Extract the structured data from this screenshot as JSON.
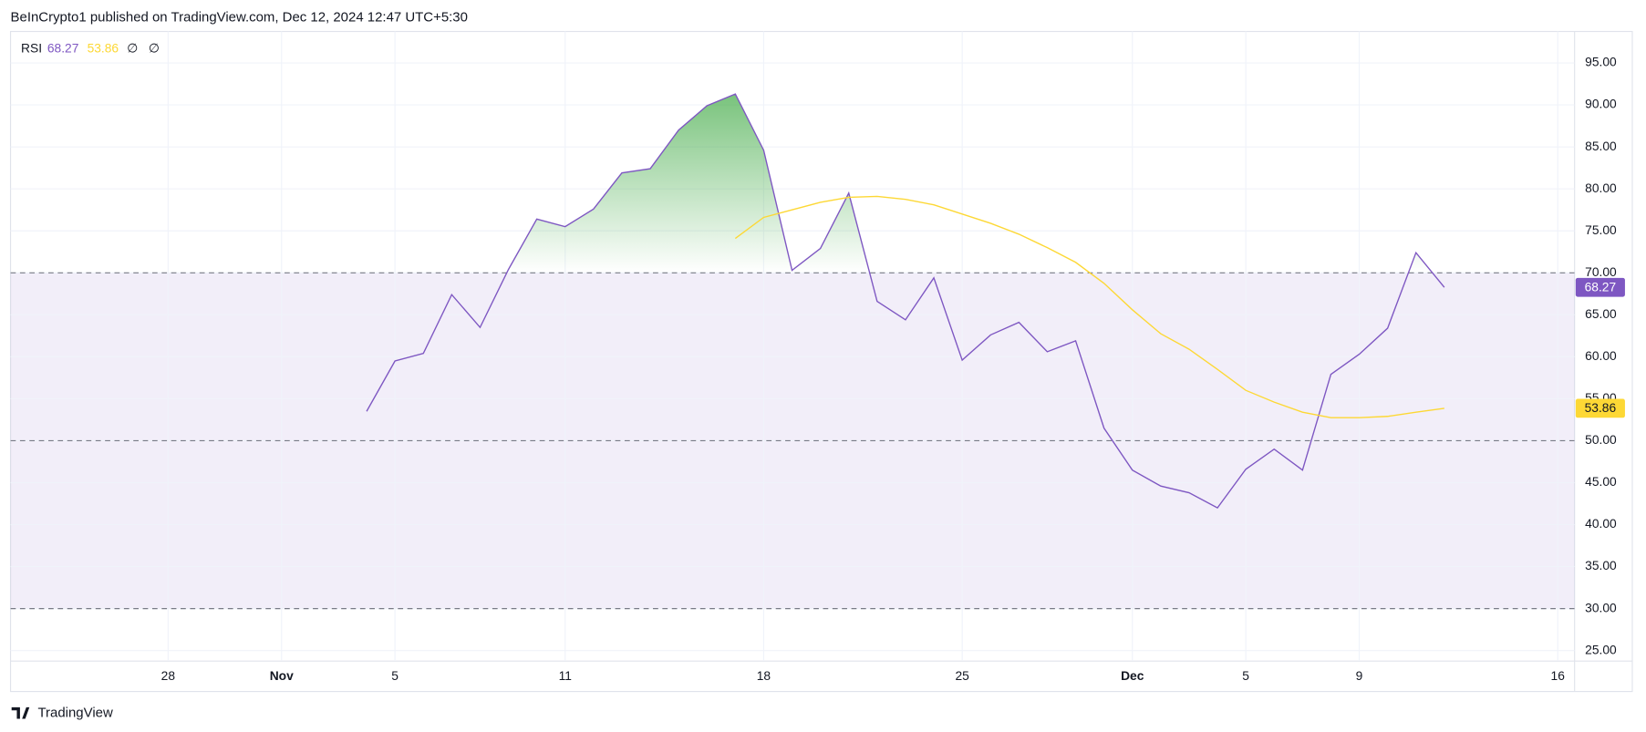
{
  "header": "BeInCrypto1 published on TradingView.com, Dec 12, 2024 12:47 UTC+5:30",
  "footer": "TradingView",
  "chart_data": {
    "type": "line",
    "legend_extra": [
      "∅",
      "∅"
    ],
    "x": [
      "Nov 4",
      "Nov 5",
      "Nov 6",
      "Nov 7",
      "Nov 8",
      "Nov 9",
      "Nov 10",
      "Nov 11",
      "Nov 12",
      "Nov 13",
      "Nov 14",
      "Nov 15",
      "Nov 16",
      "Nov 17",
      "Nov 18",
      "Nov 19",
      "Nov 20",
      "Nov 21",
      "Nov 22",
      "Nov 23",
      "Nov 24",
      "Nov 25",
      "Nov 26",
      "Nov 27",
      "Nov 28",
      "Nov 29",
      "Nov 30",
      "Dec 1",
      "Dec 2",
      "Dec 3",
      "Dec 4",
      "Dec 5",
      "Dec 6",
      "Dec 7",
      "Dec 8",
      "Dec 9",
      "Dec 10",
      "Dec 11",
      "Dec 12"
    ],
    "series": [
      {
        "name": "RSI",
        "color": "#7e57c2",
        "values": [
          53.5,
          59.5,
          60.4,
          67.4,
          63.5,
          70.4,
          76.4,
          75.5,
          77.6,
          81.9,
          82.4,
          87.0,
          89.9,
          91.3,
          84.6,
          70.3,
          72.9,
          79.5,
          66.6,
          64.4,
          69.4,
          59.6,
          62.6,
          64.1,
          60.6,
          61.9,
          51.5,
          46.5,
          44.6,
          43.8,
          42.0,
          46.6,
          49.0,
          46.5,
          57.9,
          60.3,
          63.4,
          72.4,
          68.27
        ]
      },
      {
        "color": "#fdd835",
        "values": [
          null,
          null,
          null,
          null,
          null,
          null,
          null,
          null,
          null,
          null,
          null,
          null,
          null,
          74.1,
          76.6,
          77.5,
          78.4,
          79.0,
          79.1,
          78.75,
          78.1,
          77.0,
          75.9,
          74.6,
          73.0,
          71.25,
          68.75,
          65.6,
          62.75,
          60.9,
          58.5,
          56.0,
          54.6,
          53.4,
          52.75,
          52.75,
          52.9,
          53.4,
          53.86
        ]
      }
    ],
    "levels": {
      "upper": 70,
      "middle": 50,
      "lower": 30
    },
    "band_color": "#7e57c2",
    "overbought_fill_color": "#4caf50",
    "xlim": [
      "Oct 22",
      "Dec 17"
    ],
    "xticks": [
      {
        "value": "Oct 28",
        "label": "28"
      },
      {
        "value": "Nov 1",
        "label": "Nov"
      },
      {
        "value": "Nov 5",
        "label": "5"
      },
      {
        "value": "Nov 11",
        "label": "11"
      },
      {
        "value": "Nov 18",
        "label": "18"
      },
      {
        "value": "Nov 25",
        "label": "25"
      },
      {
        "value": "Dec 1",
        "label": "Dec"
      },
      {
        "value": "Dec 5",
        "label": "5"
      },
      {
        "value": "Dec 9",
        "label": "9"
      },
      {
        "value": "Dec 16",
        "label": "16"
      }
    ],
    "ylim": [
      23.75,
      98.75
    ],
    "yticks": [
      {
        "value": 25,
        "label": "25.00"
      },
      {
        "value": 30,
        "label": "30.00"
      },
      {
        "value": 35,
        "label": "35.00"
      },
      {
        "value": 40,
        "label": "40.00"
      },
      {
        "value": 45,
        "label": "45.00"
      },
      {
        "value": 50,
        "label": "50.00"
      },
      {
        "value": 55,
        "label": "55.00"
      },
      {
        "value": 60,
        "label": "60.00"
      },
      {
        "value": 65,
        "label": "65.00"
      },
      {
        "value": 70,
        "label": "70.00"
      },
      {
        "value": 75,
        "label": "75.00"
      },
      {
        "value": 80,
        "label": "80.00"
      },
      {
        "value": 85,
        "label": "85.00"
      },
      {
        "value": 90,
        "label": "90.00"
      },
      {
        "value": 95,
        "label": "95.00"
      }
    ],
    "grid": true
  }
}
